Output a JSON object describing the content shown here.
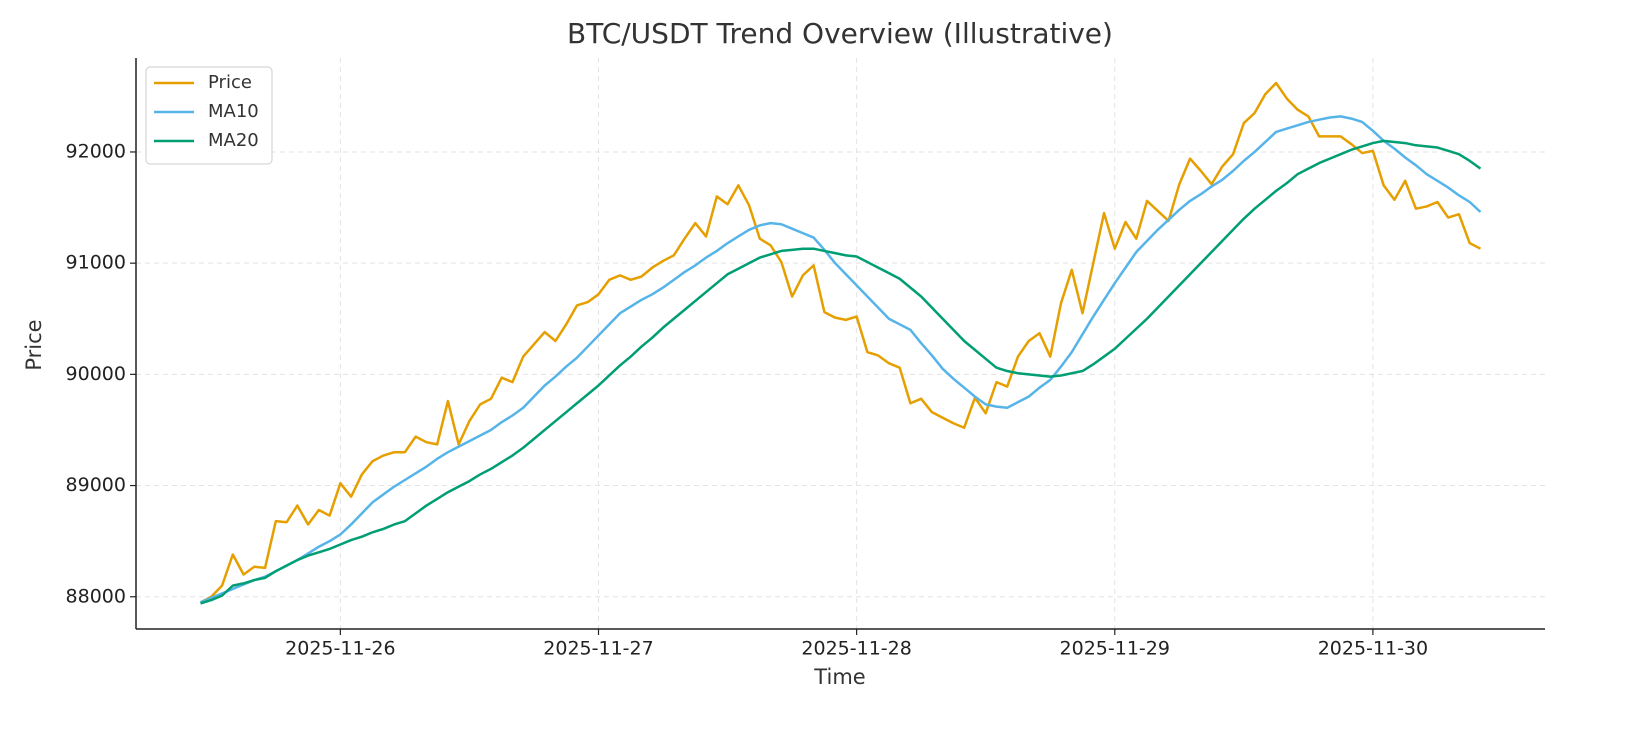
{
  "chart_data": {
    "type": "line",
    "title": "BTC/USDT Trend Overview (Illustrative)",
    "x_label": "Time",
    "y_label": "Price",
    "grid": true,
    "legend": "upper left",
    "xlim": [
      "2025-11-25T05:00",
      "2025-11-30T16:00"
    ],
    "xticks": [
      "2025-11-26",
      "2025-11-27",
      "2025-11-28",
      "2025-11-29",
      "2025-11-30"
    ],
    "ylim": [
      87710,
      92845
    ],
    "yticks": [
      88000,
      89000,
      90000,
      91000,
      92000
    ],
    "x": [
      "2025-11-25T11:00",
      "2025-11-25T12:00",
      "2025-11-25T13:00",
      "2025-11-25T14:00",
      "2025-11-25T15:00",
      "2025-11-25T16:00",
      "2025-11-25T17:00",
      "2025-11-25T18:00",
      "2025-11-25T19:00",
      "2025-11-25T20:00",
      "2025-11-25T21:00",
      "2025-11-25T22:00",
      "2025-11-25T23:00",
      "2025-11-26T00:00",
      "2025-11-26T01:00",
      "2025-11-26T02:00",
      "2025-11-26T03:00",
      "2025-11-26T04:00",
      "2025-11-26T05:00",
      "2025-11-26T06:00",
      "2025-11-26T07:00",
      "2025-11-26T08:00",
      "2025-11-26T09:00",
      "2025-11-26T10:00",
      "2025-11-26T11:00",
      "2025-11-26T12:00",
      "2025-11-26T13:00",
      "2025-11-26T14:00",
      "2025-11-26T15:00",
      "2025-11-26T16:00",
      "2025-11-26T17:00",
      "2025-11-26T18:00",
      "2025-11-26T19:00",
      "2025-11-26T20:00",
      "2025-11-26T21:00",
      "2025-11-26T22:00",
      "2025-11-26T23:00",
      "2025-11-27T00:00",
      "2025-11-27T01:00",
      "2025-11-27T02:00",
      "2025-11-27T03:00",
      "2025-11-27T04:00",
      "2025-11-27T05:00",
      "2025-11-27T06:00",
      "2025-11-27T07:00",
      "2025-11-27T08:00",
      "2025-11-27T09:00",
      "2025-11-27T10:00",
      "2025-11-27T11:00",
      "2025-11-27T12:00",
      "2025-11-27T13:00",
      "2025-11-27T14:00",
      "2025-11-27T15:00",
      "2025-11-27T16:00",
      "2025-11-27T17:00",
      "2025-11-27T18:00",
      "2025-11-27T19:00",
      "2025-11-27T20:00",
      "2025-11-27T21:00",
      "2025-11-27T22:00",
      "2025-11-27T23:00",
      "2025-11-28T00:00",
      "2025-11-28T01:00",
      "2025-11-28T02:00",
      "2025-11-28T03:00",
      "2025-11-28T04:00",
      "2025-11-28T05:00",
      "2025-11-28T06:00",
      "2025-11-28T07:00",
      "2025-11-28T08:00",
      "2025-11-28T09:00",
      "2025-11-28T10:00",
      "2025-11-28T11:00",
      "2025-11-28T12:00",
      "2025-11-28T13:00",
      "2025-11-28T14:00",
      "2025-11-28T15:00",
      "2025-11-28T16:00",
      "2025-11-28T17:00",
      "2025-11-28T18:00",
      "2025-11-28T19:00",
      "2025-11-28T20:00",
      "2025-11-28T21:00",
      "2025-11-28T22:00",
      "2025-11-28T23:00",
      "2025-11-29T00:00",
      "2025-11-29T01:00",
      "2025-11-29T02:00",
      "2025-11-29T03:00",
      "2025-11-29T04:00",
      "2025-11-29T05:00",
      "2025-11-29T06:00",
      "2025-11-29T07:00",
      "2025-11-29T08:00",
      "2025-11-29T09:00",
      "2025-11-29T10:00",
      "2025-11-29T11:00",
      "2025-11-29T12:00",
      "2025-11-29T13:00",
      "2025-11-29T14:00",
      "2025-11-29T15:00",
      "2025-11-29T16:00",
      "2025-11-29T17:00",
      "2025-11-29T18:00",
      "2025-11-29T19:00",
      "2025-11-29T20:00",
      "2025-11-29T21:00",
      "2025-11-29T22:00",
      "2025-11-29T23:00",
      "2025-11-30T00:00",
      "2025-11-30T01:00",
      "2025-11-30T02:00",
      "2025-11-30T03:00",
      "2025-11-30T04:00",
      "2025-11-30T05:00",
      "2025-11-30T06:00",
      "2025-11-30T07:00",
      "2025-11-30T08:00",
      "2025-11-30T09:00",
      "2025-11-30T10:00"
    ],
    "series": [
      {
        "name": "Price",
        "color": "#E69F00",
        "values": [
          87950,
          88000,
          88100,
          88380,
          88200,
          88270,
          88260,
          88680,
          88670,
          88820,
          88650,
          88780,
          88730,
          89020,
          88900,
          89100,
          89220,
          89270,
          89300,
          89300,
          89440,
          89390,
          89370,
          89760,
          89370,
          89580,
          89730,
          89780,
          89970,
          89930,
          90160,
          90270,
          90380,
          90300,
          90450,
          90620,
          90650,
          90720,
          90850,
          90890,
          90850,
          90880,
          90960,
          91020,
          91070,
          91220,
          91360,
          91240,
          91600,
          91530,
          91700,
          91520,
          91220,
          91160,
          91010,
          90700,
          90890,
          90980,
          90560,
          90510,
          90490,
          90520,
          90200,
          90170,
          90100,
          90060,
          89740,
          89780,
          89660,
          89610,
          89560,
          89520,
          89790,
          89650,
          89930,
          89890,
          90160,
          90300,
          90370,
          90160,
          90640,
          90940,
          90550,
          91000,
          91450,
          91130,
          91370,
          91220,
          91560,
          91470,
          91380,
          91710,
          91940,
          91830,
          91710,
          91870,
          91980,
          92260,
          92350,
          92520,
          92620,
          92480,
          92380,
          92320,
          92140,
          92140,
          92140,
          92070,
          91990,
          92010,
          91700,
          91570,
          91740,
          91490,
          91510,
          91550,
          91410,
          91440,
          91180,
          91130
        ]
      },
      {
        "name": "MA10",
        "color": "#56B4E9",
        "values": [
          87950,
          87990,
          88030,
          88070,
          88110,
          88150,
          88180,
          88230,
          88280,
          88330,
          88390,
          88450,
          88500,
          88560,
          88650,
          88750,
          88850,
          88920,
          88990,
          89050,
          89110,
          89170,
          89240,
          89300,
          89350,
          89400,
          89450,
          89500,
          89570,
          89630,
          89700,
          89800,
          89900,
          89980,
          90070,
          90150,
          90250,
          90350,
          90450,
          90550,
          90610,
          90670,
          90720,
          90780,
          90850,
          90920,
          90980,
          91050,
          91110,
          91180,
          91240,
          91300,
          91340,
          91360,
          91350,
          91310,
          91270,
          91230,
          91120,
          91000,
          90900,
          90800,
          90700,
          90600,
          90500,
          90450,
          90400,
          90280,
          90170,
          90050,
          89960,
          89880,
          89800,
          89730,
          89710,
          89700,
          89750,
          89800,
          89880,
          89950,
          90070,
          90200,
          90360,
          90520,
          90670,
          90820,
          90960,
          91100,
          91200,
          91300,
          91390,
          91480,
          91560,
          91620,
          91690,
          91750,
          91830,
          91920,
          92000,
          92090,
          92180,
          92210,
          92240,
          92270,
          92290,
          92310,
          92320,
          92300,
          92270,
          92190,
          92100,
          92030,
          91950,
          91880,
          91800,
          91740,
          91680,
          91610,
          91550,
          91460
        ]
      },
      {
        "name": "MA20",
        "color": "#009E73",
        "values": [
          87940,
          87970,
          88010,
          88100,
          88120,
          88150,
          88170,
          88230,
          88280,
          88330,
          88370,
          88400,
          88430,
          88470,
          88510,
          88540,
          88580,
          88610,
          88650,
          88680,
          88750,
          88820,
          88880,
          88940,
          88990,
          89040,
          89100,
          89150,
          89210,
          89270,
          89340,
          89420,
          89500,
          89580,
          89660,
          89740,
          89820,
          89900,
          89990,
          90080,
          90160,
          90250,
          90330,
          90420,
          90500,
          90580,
          90660,
          90740,
          90820,
          90900,
          90950,
          91000,
          91050,
          91080,
          91110,
          91120,
          91130,
          91130,
          91110,
          91090,
          91070,
          91060,
          91010,
          90960,
          90910,
          90860,
          90780,
          90700,
          90600,
          90500,
          90400,
          90300,
          90220,
          90140,
          90060,
          90030,
          90010,
          90000,
          89990,
          89980,
          89990,
          90010,
          90030,
          90090,
          90160,
          90230,
          90320,
          90410,
          90500,
          90600,
          90700,
          90800,
          90900,
          91000,
          91100,
          91200,
          91300,
          91400,
          91490,
          91570,
          91650,
          91720,
          91800,
          91850,
          91900,
          91940,
          91980,
          92020,
          92050,
          92080,
          92100,
          92090,
          92080,
          92060,
          92050,
          92040,
          92010,
          91980,
          91920,
          91850
        ]
      }
    ]
  }
}
